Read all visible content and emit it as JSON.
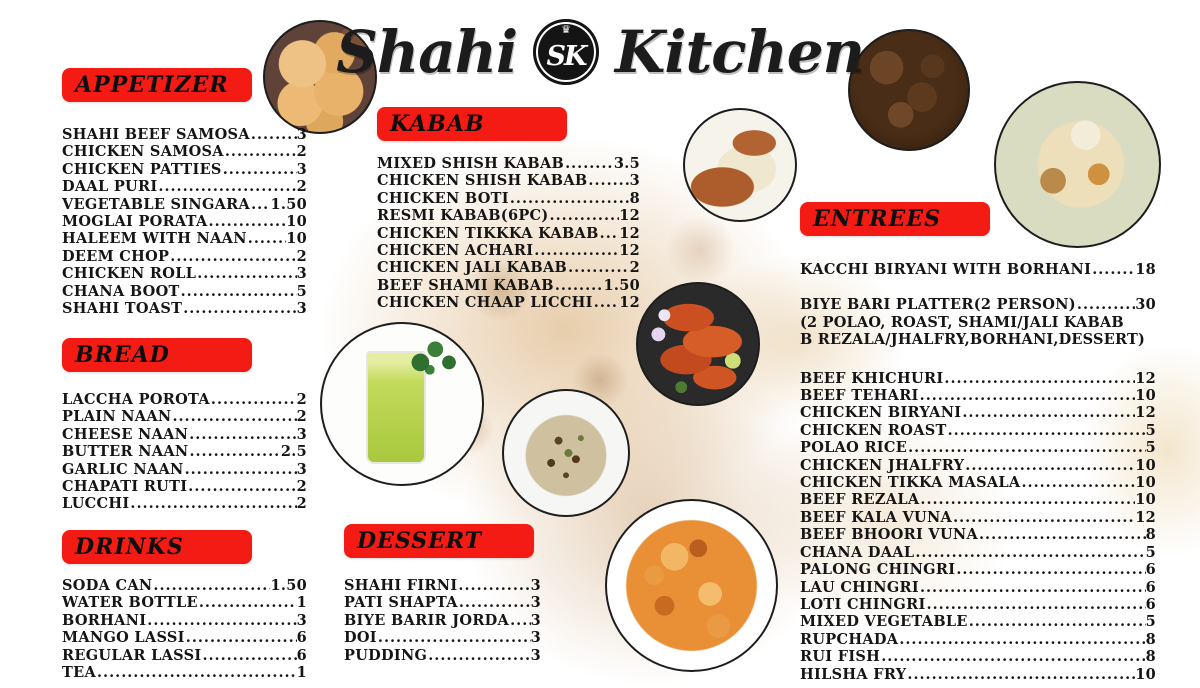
{
  "title": {
    "word1": "Shahi",
    "word2": "Kitchen",
    "logo_text": "SK",
    "logo_crown": "♛"
  },
  "colors": {
    "banner_red": "#f31b13",
    "text_black": "#151515"
  },
  "sections": {
    "appetizer": {
      "label": "APPETIZER",
      "items": [
        {
          "name": "SHAHI BEEF SAMOSA",
          "price": "3"
        },
        {
          "name": "CHICKEN SAMOSA",
          "price": "2"
        },
        {
          "name": "CHICKEN PATTIES",
          "price": "3"
        },
        {
          "name": "DAAL PURI",
          "price": "2"
        },
        {
          "name": "VEGETABLE SINGARA",
          "price": "1.50"
        },
        {
          "name": "MOGLAI PORATA",
          "price": "10"
        },
        {
          "name": "HALEEM WITH NAAN",
          "price": "10"
        },
        {
          "name": "DEEM CHOP",
          "price": "2"
        },
        {
          "name": "CHICKEN ROLL",
          "price": "3"
        },
        {
          "name": "CHANA BOOT",
          "price": "5"
        },
        {
          "name": "SHAHI TOAST",
          "price": "3"
        }
      ]
    },
    "bread": {
      "label": "BREAD",
      "items": [
        {
          "name": "LACCHA POROTA",
          "price": "2"
        },
        {
          "name": "PLAIN NAAN",
          "price": "2"
        },
        {
          "name": "CHEESE NAAN",
          "price": "3"
        },
        {
          "name": "BUTTER NAAN",
          "price": "2.5"
        },
        {
          "name": "GARLIC NAAN",
          "price": "3"
        },
        {
          "name": "CHAPATI RUTI",
          "price": "2"
        },
        {
          "name": "LUCCHI",
          "price": "2"
        }
      ]
    },
    "drinks": {
      "label": "DRINKS",
      "items": [
        {
          "name": "SODA CAN",
          "price": "1.50"
        },
        {
          "name": "WATER BOTTLE",
          "price": "1"
        },
        {
          "name": "BORHANI",
          "price": "3"
        },
        {
          "name": "MANGO LASSI",
          "price": "6"
        },
        {
          "name": "REGULAR LASSI",
          "price": "6"
        },
        {
          "name": "TEA",
          "price": "1"
        }
      ]
    },
    "kabab": {
      "label": "KABAB",
      "items": [
        {
          "name": "MIXED SHISH KABAB",
          "price": "3.5"
        },
        {
          "name": "CHICKEN SHISH KABAB",
          "price": "3"
        },
        {
          "name": "CHICKEN BOTI",
          "price": "8"
        },
        {
          "name": "RESMI KABAB(6PC)",
          "price": "12"
        },
        {
          "name": "CHICKEN TIKKKA KABAB",
          "price": "12"
        },
        {
          "name": "CHICKEN ACHARI",
          "price": "12"
        },
        {
          "name": "CHICKEN JALI KABAB",
          "price": "2"
        },
        {
          "name": "BEEF SHAMI KABAB",
          "price": "1.50"
        },
        {
          "name": "CHICKEN CHAAP LICCHI",
          "price": "12"
        }
      ]
    },
    "dessert": {
      "label": "DESSERT",
      "items": [
        {
          "name": "SHAHI FIRNI",
          "price": "3"
        },
        {
          "name": "PATI SHAPTA",
          "price": "3"
        },
        {
          "name": "BIYE BARIR JORDA",
          "price": "3"
        },
        {
          "name": "DOI",
          "price": "3"
        },
        {
          "name": "PUDDING",
          "price": "3"
        }
      ]
    },
    "entrees": {
      "label": "ENTREES",
      "featured": [
        {
          "name": "KACCHI BIRYANI WITH BORHANI",
          "price": "18"
        }
      ],
      "platter": [
        {
          "name": "BIYE BARI PLATTER(2 PERSON)",
          "price": "30"
        }
      ],
      "platter_desc1": "(2 POLAO, ROAST, SHAMI/JALI KABAB",
      "platter_desc2": "B REZALA/JHALFRY,BORHANI,DESSERT)",
      "items": [
        {
          "name": "BEEF KHICHURI",
          "price": "12"
        },
        {
          "name": "BEEF TEHARI",
          "price": "10"
        },
        {
          "name": "CHICKEN BIRYANI",
          "price": "12"
        },
        {
          "name": "CHICKEN ROAST",
          "price": "5"
        },
        {
          "name": "POLAO RICE",
          "price": "5"
        },
        {
          "name": "CHICKEN JHALFRY",
          "price": "10"
        },
        {
          "name": "CHICKEN TIKKA MASALA",
          "price": "10"
        },
        {
          "name": "BEEF REZALA",
          "price": "10"
        },
        {
          "name": "BEEF KALA VUNA",
          "price": "12"
        },
        {
          "name": "BEEF BHOORI VUNA",
          "price": "8"
        },
        {
          "name": "CHANA DAAL",
          "price": "5"
        },
        {
          "name": "PALONG CHINGRI",
          "price": "6"
        },
        {
          "name": "LAU CHINGRI",
          "price": "6"
        },
        {
          "name": "LOTI CHINGRI",
          "price": "6"
        },
        {
          "name": "MIXED VEGETABLE",
          "price": "5"
        },
        {
          "name": "RUPCHADA",
          "price": "8"
        },
        {
          "name": "RUI FISH",
          "price": "8"
        },
        {
          "name": "HILSHA FRY",
          "price": "10"
        }
      ]
    }
  },
  "photos": {
    "puri": "fried puri bread basket",
    "chicken_rice": "chicken roast with rice plate",
    "beef_curry": "beef kala bhuna",
    "biryani": "kacchi biryani plate with egg",
    "green_lassi": "green lassi glass with mint",
    "tandoori": "tandoori chicken platter",
    "khichuri": "bhuna khichuri rice ball",
    "curry_bowl": "chicken curry bowl"
  }
}
